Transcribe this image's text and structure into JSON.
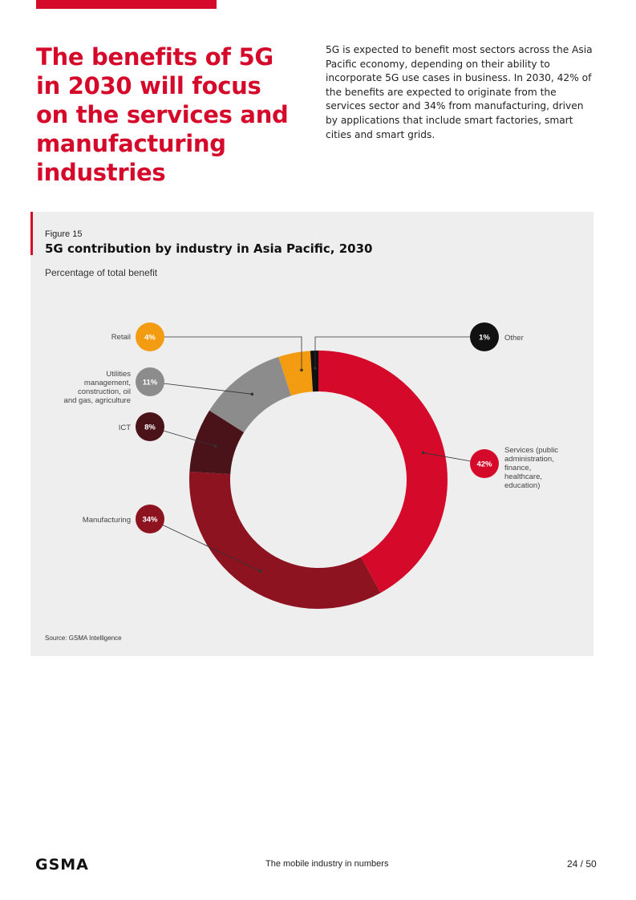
{
  "headline": "The benefits of 5G\nin 2030 will focus\non the services and\nmanufacturing\nindustries",
  "intro": "5G is expected to benefit most sectors across the Asia Pacific economy, depending on their ability to incorporate 5G use cases in business. In 2030, 42% of the benefits are expected to originate from the services sector and 34% from manufacturing, driven by applications that include smart factories, smart cities and smart grids.",
  "figure": {
    "label": "Figure 15",
    "title": "5G contribution by industry in Asia Pacific, 2030",
    "subtitle": "Percentage of total benefit",
    "source": "Source: GSMA Intelligence"
  },
  "chart_data": {
    "type": "pie",
    "donut": true,
    "title": "5G contribution by industry in Asia Pacific, 2030",
    "subtitle": "Percentage of total benefit",
    "unit": "%",
    "slices": [
      {
        "name": "Services (public administration, finance, healthcare, education)",
        "value": 42,
        "label": "42%",
        "color": "#d50a2a"
      },
      {
        "name": "Manufacturing",
        "value": 34,
        "label": "34%",
        "color": "#8e1320"
      },
      {
        "name": "ICT",
        "value": 8,
        "label": "8%",
        "color": "#4a1219"
      },
      {
        "name": "Utilities management, construction, oil and gas, agriculture",
        "value": 11,
        "label": "11%",
        "color": "#8c8c8c"
      },
      {
        "name": "Retail",
        "value": 4,
        "label": "4%",
        "color": "#f39c12"
      },
      {
        "name": "Other",
        "value": 1,
        "label": "1%",
        "color": "#111111"
      }
    ]
  },
  "footer": {
    "logo": "GSMA",
    "center": "The mobile industry in numbers",
    "page": "24 / 50"
  }
}
